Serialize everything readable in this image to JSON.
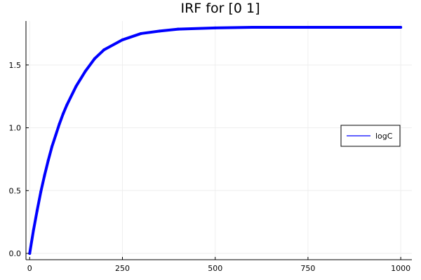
{
  "chart_data": {
    "type": "line",
    "title": "IRF for [0 1]",
    "xlabel": "",
    "ylabel": "",
    "xlim": [
      0,
      1000
    ],
    "ylim": [
      0,
      1.8
    ],
    "x_ticks": [
      0,
      250,
      500,
      750,
      1000
    ],
    "y_ticks": [
      0.0,
      0.5,
      1.0,
      1.5
    ],
    "x_tick_labels": [
      "0",
      "250",
      "500",
      "750",
      "1000"
    ],
    "y_tick_labels": [
      "0.0",
      "0.5",
      "1.0",
      "1.5"
    ],
    "grid": true,
    "legend_position": "right",
    "series": [
      {
        "name": "logC",
        "color": "#0000ff",
        "x": [
          0,
          10,
          20,
          30,
          40,
          50,
          60,
          70,
          80,
          90,
          100,
          125,
          150,
          175,
          200,
          250,
          300,
          350,
          400,
          500,
          600,
          700,
          800,
          900,
          1000
        ],
        "y": [
          0.0,
          0.18,
          0.34,
          0.49,
          0.62,
          0.74,
          0.85,
          0.94,
          1.03,
          1.11,
          1.18,
          1.33,
          1.45,
          1.55,
          1.62,
          1.7,
          1.75,
          1.77,
          1.785,
          1.795,
          1.8,
          1.8,
          1.8,
          1.8,
          1.8
        ]
      }
    ]
  }
}
